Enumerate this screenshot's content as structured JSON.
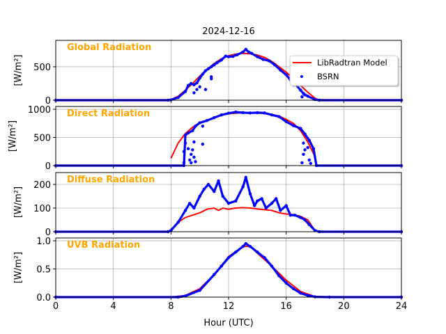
{
  "chart_data": {
    "type": "line",
    "title": "2024-12-16",
    "xlabel": "Hour (UTC)",
    "xlim": [
      0,
      24
    ],
    "xticks": [
      0,
      4,
      8,
      12,
      16,
      20,
      24
    ],
    "grid": true,
    "legend": {
      "placement": "upper-right of first panel",
      "entries": [
        "LibRadtran Model",
        "BSRN"
      ]
    },
    "colors": {
      "model": "#ff0000",
      "bsrn": "#0000ff",
      "panel_title": "#FFA500"
    },
    "panels": [
      {
        "title": "Global Radiation",
        "ylabel": "[W/m²]",
        "ylim": [
          0,
          895
        ],
        "yticks": [
          0,
          500
        ],
        "model": [
          [
            8,
            10
          ],
          [
            8.5,
            60
          ],
          [
            9,
            150
          ],
          [
            9.5,
            250
          ],
          [
            10,
            360
          ],
          [
            10.5,
            460
          ],
          [
            11,
            550
          ],
          [
            11.5,
            620
          ],
          [
            12,
            665
          ],
          [
            12.5,
            690
          ],
          [
            13,
            700
          ],
          [
            13.5,
            695
          ],
          [
            14,
            675
          ],
          [
            14.5,
            640
          ],
          [
            15,
            580
          ],
          [
            15.5,
            500
          ],
          [
            16,
            420
          ],
          [
            16.5,
            320
          ],
          [
            17,
            220
          ],
          [
            17.5,
            120
          ],
          [
            18,
            30
          ],
          [
            18.3,
            0
          ]
        ],
        "bsrn": [
          [
            0,
            0
          ],
          [
            7.8,
            0
          ],
          [
            8,
            5
          ],
          [
            8.5,
            40
          ],
          [
            9,
            130
          ],
          [
            9.2,
            220
          ],
          [
            9.4,
            250
          ],
          [
            9.6,
            230
          ],
          [
            9.8,
            260
          ],
          [
            10,
            330
          ],
          [
            10.2,
            390
          ],
          [
            10.4,
            440
          ],
          [
            10.6,
            470
          ],
          [
            10.8,
            500
          ],
          [
            11,
            530
          ],
          [
            11.2,
            560
          ],
          [
            11.5,
            600
          ],
          [
            11.8,
            660
          ],
          [
            12,
            650
          ],
          [
            12.3,
            655
          ],
          [
            12.6,
            680
          ],
          [
            13,
            720
          ],
          [
            13.2,
            760
          ],
          [
            13.4,
            720
          ],
          [
            13.6,
            700
          ],
          [
            14,
            650
          ],
          [
            14.4,
            610
          ],
          [
            14.8,
            590
          ],
          [
            15.2,
            530
          ],
          [
            15.6,
            450
          ],
          [
            16,
            380
          ],
          [
            16.3,
            300
          ],
          [
            16.6,
            250
          ],
          [
            17,
            150
          ],
          [
            17.2,
            100
          ],
          [
            17.5,
            60
          ],
          [
            18,
            10
          ],
          [
            18.3,
            0
          ],
          [
            24,
            0
          ]
        ],
        "bsrn_outliers": [
          [
            9.6,
            110
          ],
          [
            9.8,
            160
          ],
          [
            10,
            200
          ],
          [
            10.4,
            160
          ],
          [
            10.8,
            320
          ],
          [
            10.8,
            350
          ],
          [
            17.1,
            50
          ],
          [
            17.3,
            80
          ]
        ]
      },
      {
        "title": "Direct Radiation",
        "ylabel": "[W/m²]",
        "ylim": [
          0,
          1050
        ],
        "yticks": [
          0,
          500,
          1000
        ],
        "model": [
          [
            8,
            130
          ],
          [
            8.5,
            400
          ],
          [
            9,
            570
          ],
          [
            9.5,
            680
          ],
          [
            10,
            760
          ],
          [
            10.5,
            800
          ],
          [
            11,
            860
          ],
          [
            12,
            920
          ],
          [
            13,
            940
          ],
          [
            14,
            935
          ],
          [
            15,
            910
          ],
          [
            15.5,
            880
          ],
          [
            16,
            820
          ],
          [
            16.5,
            750
          ],
          [
            17,
            620
          ],
          [
            17.5,
            420
          ],
          [
            18,
            160
          ]
        ],
        "bsrn": [
          [
            0,
            0
          ],
          [
            8.9,
            0
          ],
          [
            9,
            540
          ],
          [
            9.2,
            580
          ],
          [
            9.5,
            620
          ],
          [
            9.7,
            700
          ],
          [
            10,
            760
          ],
          [
            10.5,
            800
          ],
          [
            11,
            850
          ],
          [
            11.5,
            900
          ],
          [
            12,
            930
          ],
          [
            12.5,
            950
          ],
          [
            13,
            940
          ],
          [
            13.5,
            935
          ],
          [
            14,
            940
          ],
          [
            14.5,
            935
          ],
          [
            15,
            900
          ],
          [
            15.5,
            870
          ],
          [
            16,
            780
          ],
          [
            16.5,
            710
          ],
          [
            17,
            660
          ],
          [
            17.3,
            560
          ],
          [
            17.6,
            450
          ],
          [
            17.9,
            300
          ],
          [
            18.1,
            0
          ],
          [
            24,
            0
          ]
        ],
        "bsrn_outliers": [
          [
            8.9,
            50
          ],
          [
            8.9,
            250
          ],
          [
            9,
            400
          ],
          [
            9.2,
            300
          ],
          [
            9.3,
            100
          ],
          [
            9.4,
            50
          ],
          [
            9.4,
            200
          ],
          [
            9.5,
            280
          ],
          [
            9.6,
            150
          ],
          [
            9.6,
            420
          ],
          [
            9.7,
            70
          ],
          [
            10.2,
            380
          ],
          [
            10.2,
            700
          ],
          [
            17.1,
            50
          ],
          [
            17.2,
            200
          ],
          [
            17.2,
            400
          ],
          [
            17.3,
            280
          ],
          [
            17.5,
            320
          ],
          [
            17.6,
            100
          ],
          [
            17.7,
            40
          ]
        ]
      },
      {
        "title": "Diffuse Radiation",
        "ylabel": "[W/m²]",
        "ylim": [
          0,
          250
        ],
        "yticks": [
          0,
          100,
          200
        ],
        "model": [
          [
            8,
            10
          ],
          [
            8.5,
            40
          ],
          [
            9,
            60
          ],
          [
            9.5,
            70
          ],
          [
            10,
            80
          ],
          [
            10.5,
            95
          ],
          [
            11,
            100
          ],
          [
            11.3,
            90
          ],
          [
            11.6,
            100
          ],
          [
            12,
            95
          ],
          [
            12.5,
            100
          ],
          [
            13,
            102
          ],
          [
            13.5,
            100
          ],
          [
            14,
            96
          ],
          [
            14.5,
            93
          ],
          [
            15,
            90
          ],
          [
            15.5,
            80
          ],
          [
            16,
            75
          ],
          [
            16.5,
            72
          ],
          [
            17,
            65
          ],
          [
            17.5,
            50
          ],
          [
            18,
            5
          ]
        ],
        "bsrn": [
          [
            0,
            0
          ],
          [
            7.8,
            0
          ],
          [
            8,
            5
          ],
          [
            8.5,
            40
          ],
          [
            9,
            90
          ],
          [
            9.3,
            120
          ],
          [
            9.6,
            100
          ],
          [
            10,
            150
          ],
          [
            10.3,
            180
          ],
          [
            10.6,
            200
          ],
          [
            11,
            170
          ],
          [
            11.3,
            215
          ],
          [
            11.6,
            150
          ],
          [
            12,
            120
          ],
          [
            12.5,
            130
          ],
          [
            13,
            190
          ],
          [
            13.2,
            230
          ],
          [
            13.5,
            160
          ],
          [
            13.8,
            110
          ],
          [
            14,
            130
          ],
          [
            14.3,
            140
          ],
          [
            14.6,
            100
          ],
          [
            15,
            120
          ],
          [
            15.3,
            140
          ],
          [
            15.6,
            90
          ],
          [
            16,
            110
          ],
          [
            16.3,
            70
          ],
          [
            16.6,
            70
          ],
          [
            17,
            60
          ],
          [
            17.3,
            50
          ],
          [
            17.6,
            30
          ],
          [
            18,
            5
          ],
          [
            18.3,
            0
          ],
          [
            24,
            0
          ]
        ],
        "bsrn_outliers": []
      },
      {
        "title": "UVB Radiation",
        "ylabel": "[W/m²]",
        "ylim": [
          0,
          1.05
        ],
        "yticks": [
          0.0,
          0.5,
          1.0
        ],
        "model": [
          [
            8,
            0
          ],
          [
            9,
            0.03
          ],
          [
            10,
            0.15
          ],
          [
            11,
            0.4
          ],
          [
            12,
            0.72
          ],
          [
            13,
            0.9
          ],
          [
            13.5,
            0.9
          ],
          [
            14,
            0.78
          ],
          [
            15,
            0.55
          ],
          [
            16,
            0.3
          ],
          [
            17,
            0.1
          ],
          [
            18,
            0.01
          ],
          [
            19,
            0
          ]
        ],
        "bsrn": [
          [
            0,
            0
          ],
          [
            8.5,
            0
          ],
          [
            9,
            0.02
          ],
          [
            10,
            0.12
          ],
          [
            11,
            0.4
          ],
          [
            11.5,
            0.55
          ],
          [
            12,
            0.7
          ],
          [
            12.5,
            0.8
          ],
          [
            13,
            0.9
          ],
          [
            13.2,
            0.95
          ],
          [
            13.5,
            0.9
          ],
          [
            14,
            0.8
          ],
          [
            14.5,
            0.7
          ],
          [
            15,
            0.55
          ],
          [
            15.5,
            0.38
          ],
          [
            16,
            0.25
          ],
          [
            16.5,
            0.15
          ],
          [
            17,
            0.07
          ],
          [
            17.5,
            0.03
          ],
          [
            18,
            0.005
          ],
          [
            19,
            0
          ],
          [
            24,
            0
          ]
        ],
        "bsrn_outliers": []
      }
    ]
  }
}
